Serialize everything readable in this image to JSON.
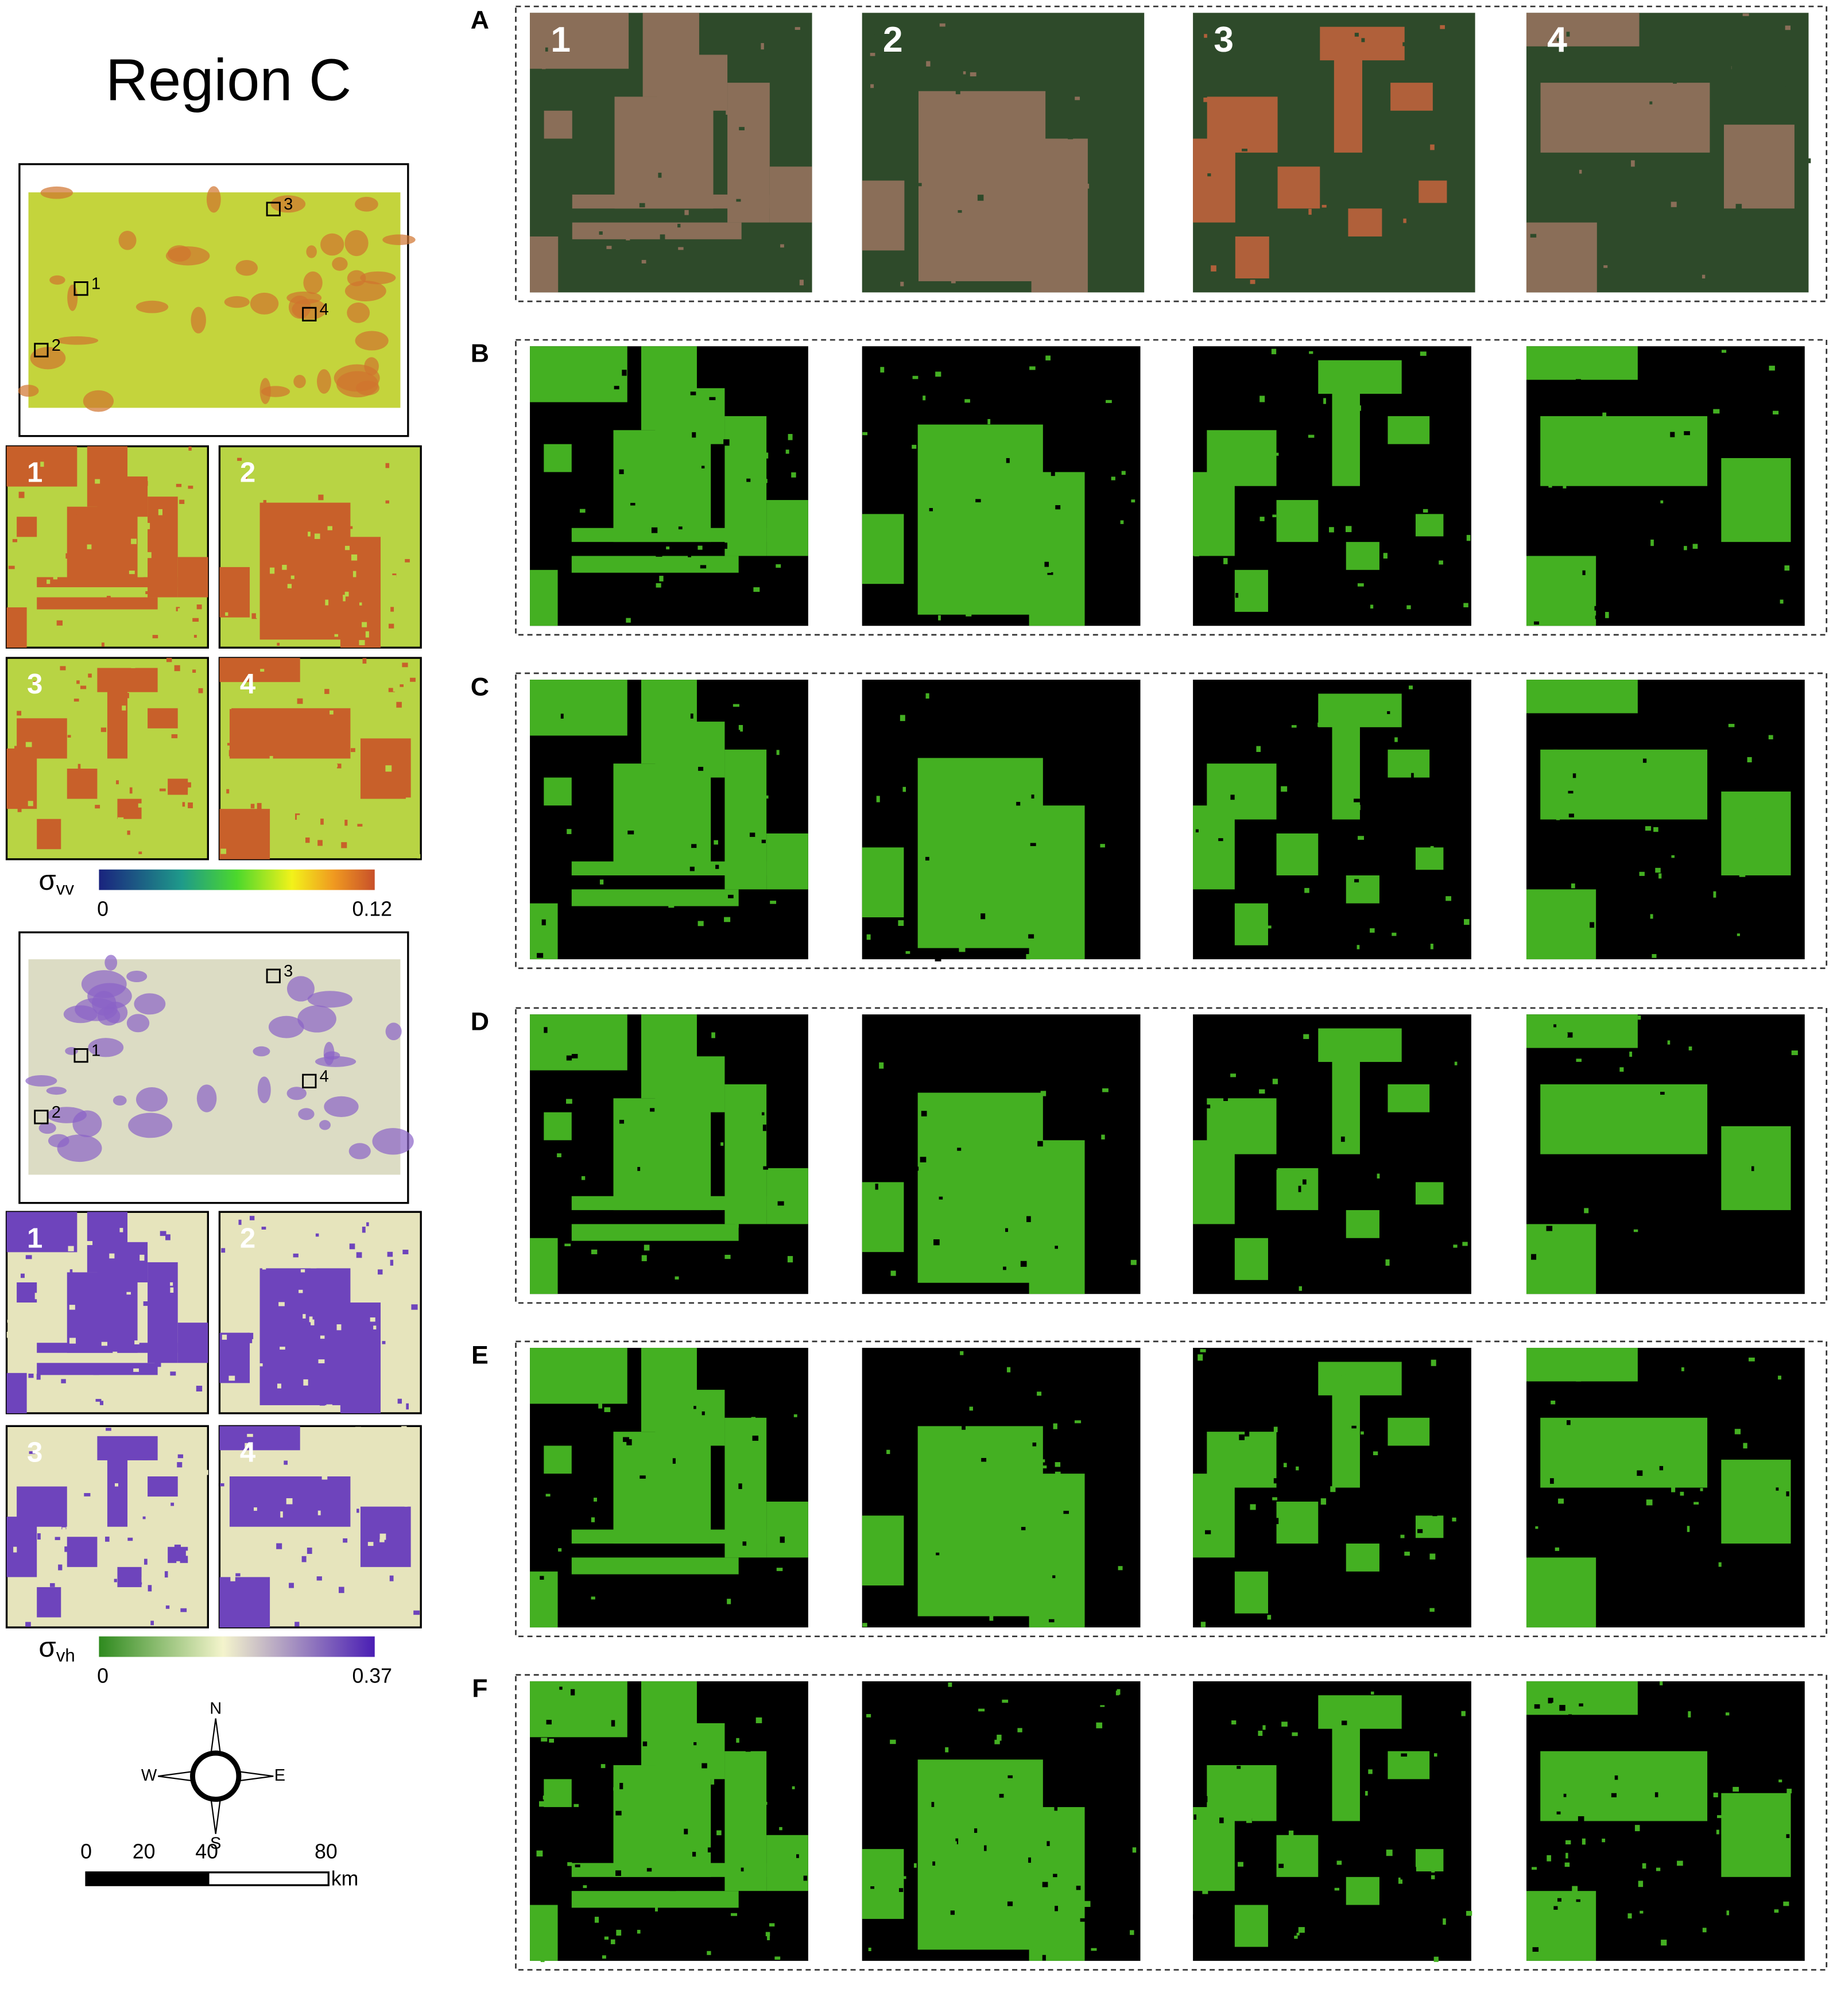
{
  "header": {
    "title": "Region C"
  },
  "overview_maps": [
    {
      "markers": [
        "1",
        "2",
        "3",
        "4"
      ],
      "zoom_labels": [
        "1",
        "2",
        "3",
        "4"
      ],
      "colorbar": {
        "symbol": "σ",
        "subscript": "vv",
        "min": "0",
        "max": "0.12"
      }
    },
    {
      "markers": [
        "1",
        "2",
        "3",
        "4"
      ],
      "zoom_labels": [
        "1",
        "2",
        "3",
        "4"
      ],
      "colorbar": {
        "symbol": "σ",
        "subscript": "vh",
        "min": "0",
        "max": "0.37"
      }
    }
  ],
  "compass": {
    "north": "N",
    "south": "S",
    "east": "E",
    "west": "W"
  },
  "scale_bar": {
    "ticks": [
      "0",
      "20",
      "40",
      "80"
    ],
    "unit": "km"
  },
  "panels": {
    "rows": [
      "A",
      "B",
      "C",
      "D",
      "E",
      "F"
    ],
    "tile_labels": [
      "1",
      "2",
      "3",
      "4"
    ]
  }
}
